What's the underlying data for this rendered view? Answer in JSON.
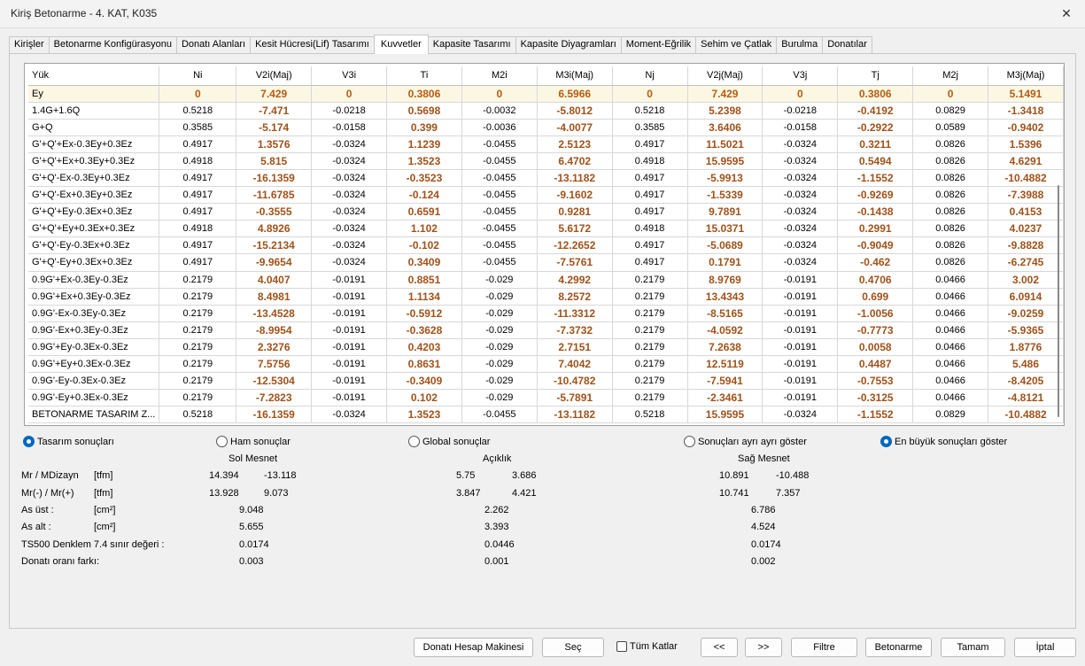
{
  "window": {
    "title": "Kiriş Betonarme - 4. KAT, K035",
    "close_glyph": "✕"
  },
  "tabs": [
    {
      "label": "Kirişler"
    },
    {
      "label": "Betonarme Konfigürasyonu"
    },
    {
      "label": "Donatı Alanları"
    },
    {
      "label": "Kesit Hücresi(Lif) Tasarımı"
    },
    {
      "label": "Kuvvetler",
      "active": true
    },
    {
      "label": "Kapasite Tasarımı"
    },
    {
      "label": "Kapasite Diyagramları"
    },
    {
      "label": "Moment-Eğrilik"
    },
    {
      "label": "Sehim ve Çatlak"
    },
    {
      "label": "Burulma"
    },
    {
      "label": "Donatılar"
    }
  ],
  "table": {
    "columns": [
      "Yük",
      "Ni",
      "V2i(Maj)",
      "V3i",
      "Ti",
      "M2i",
      "M3i(Maj)",
      "Nj",
      "V2j(Maj)",
      "V3j",
      "Tj",
      "M2j",
      "M3j(Maj)"
    ],
    "highlight_columns": [
      2,
      4,
      6,
      8,
      10,
      12
    ],
    "rows": [
      [
        "Ey",
        "0",
        "7.429",
        "0",
        "0.3806",
        "0",
        "6.5966",
        "0",
        "7.429",
        "0",
        "0.3806",
        "0",
        "5.1491"
      ],
      [
        "1.4G+1.6Q",
        "0.5218",
        "-7.471",
        "-0.0218",
        "0.5698",
        "-0.0032",
        "-5.8012",
        "0.5218",
        "5.2398",
        "-0.0218",
        "-0.4192",
        "0.0829",
        "-1.3418"
      ],
      [
        "G+Q",
        "0.3585",
        "-5.174",
        "-0.0158",
        "0.399",
        "-0.0036",
        "-4.0077",
        "0.3585",
        "3.6406",
        "-0.0158",
        "-0.2922",
        "0.0589",
        "-0.9402"
      ],
      [
        "G'+Q'+Ex-0.3Ey+0.3Ez",
        "0.4917",
        "1.3576",
        "-0.0324",
        "1.1239",
        "-0.0455",
        "2.5123",
        "0.4917",
        "11.5021",
        "-0.0324",
        "0.3211",
        "0.0826",
        "1.5396"
      ],
      [
        "G'+Q'+Ex+0.3Ey+0.3Ez",
        "0.4918",
        "5.815",
        "-0.0324",
        "1.3523",
        "-0.0455",
        "6.4702",
        "0.4918",
        "15.9595",
        "-0.0324",
        "0.5494",
        "0.0826",
        "4.6291"
      ],
      [
        "G'+Q'-Ex-0.3Ey+0.3Ez",
        "0.4917",
        "-16.1359",
        "-0.0324",
        "-0.3523",
        "-0.0455",
        "-13.1182",
        "0.4917",
        "-5.9913",
        "-0.0324",
        "-1.1552",
        "0.0826",
        "-10.4882"
      ],
      [
        "G'+Q'-Ex+0.3Ey+0.3Ez",
        "0.4917",
        "-11.6785",
        "-0.0324",
        "-0.124",
        "-0.0455",
        "-9.1602",
        "0.4917",
        "-1.5339",
        "-0.0324",
        "-0.9269",
        "0.0826",
        "-7.3988"
      ],
      [
        "G'+Q'+Ey-0.3Ex+0.3Ez",
        "0.4917",
        "-0.3555",
        "-0.0324",
        "0.6591",
        "-0.0455",
        "0.9281",
        "0.4917",
        "9.7891",
        "-0.0324",
        "-0.1438",
        "0.0826",
        "0.4153"
      ],
      [
        "G'+Q'+Ey+0.3Ex+0.3Ez",
        "0.4918",
        "4.8926",
        "-0.0324",
        "1.102",
        "-0.0455",
        "5.6172",
        "0.4918",
        "15.0371",
        "-0.0324",
        "0.2991",
        "0.0826",
        "4.0237"
      ],
      [
        "G'+Q'-Ey-0.3Ex+0.3Ez",
        "0.4917",
        "-15.2134",
        "-0.0324",
        "-0.102",
        "-0.0455",
        "-12.2652",
        "0.4917",
        "-5.0689",
        "-0.0324",
        "-0.9049",
        "0.0826",
        "-9.8828"
      ],
      [
        "G'+Q'-Ey+0.3Ex+0.3Ez",
        "0.4917",
        "-9.9654",
        "-0.0324",
        "0.3409",
        "-0.0455",
        "-7.5761",
        "0.4917",
        "0.1791",
        "-0.0324",
        "-0.462",
        "0.0826",
        "-6.2745"
      ],
      [
        "0.9G'+Ex-0.3Ey-0.3Ez",
        "0.2179",
        "4.0407",
        "-0.0191",
        "0.8851",
        "-0.029",
        "4.2992",
        "0.2179",
        "8.9769",
        "-0.0191",
        "0.4706",
        "0.0466",
        "3.002"
      ],
      [
        "0.9G'+Ex+0.3Ey-0.3Ez",
        "0.2179",
        "8.4981",
        "-0.0191",
        "1.1134",
        "-0.029",
        "8.2572",
        "0.2179",
        "13.4343",
        "-0.0191",
        "0.699",
        "0.0466",
        "6.0914"
      ],
      [
        "0.9G'-Ex-0.3Ey-0.3Ez",
        "0.2179",
        "-13.4528",
        "-0.0191",
        "-0.5912",
        "-0.029",
        "-11.3312",
        "0.2179",
        "-8.5165",
        "-0.0191",
        "-1.0056",
        "0.0466",
        "-9.0259"
      ],
      [
        "0.9G'-Ex+0.3Ey-0.3Ez",
        "0.2179",
        "-8.9954",
        "-0.0191",
        "-0.3628",
        "-0.029",
        "-7.3732",
        "0.2179",
        "-4.0592",
        "-0.0191",
        "-0.7773",
        "0.0466",
        "-5.9365"
      ],
      [
        "0.9G'+Ey-0.3Ex-0.3Ez",
        "0.2179",
        "2.3276",
        "-0.0191",
        "0.4203",
        "-0.029",
        "2.7151",
        "0.2179",
        "7.2638",
        "-0.0191",
        "0.0058",
        "0.0466",
        "1.8776"
      ],
      [
        "0.9G'+Ey+0.3Ex-0.3Ez",
        "0.2179",
        "7.5756",
        "-0.0191",
        "0.8631",
        "-0.029",
        "7.4042",
        "0.2179",
        "12.5119",
        "-0.0191",
        "0.4487",
        "0.0466",
        "5.486"
      ],
      [
        "0.9G'-Ey-0.3Ex-0.3Ez",
        "0.2179",
        "-12.5304",
        "-0.0191",
        "-0.3409",
        "-0.029",
        "-10.4782",
        "0.2179",
        "-7.5941",
        "-0.0191",
        "-0.7553",
        "0.0466",
        "-8.4205"
      ],
      [
        "0.9G'-Ey+0.3Ex-0.3Ez",
        "0.2179",
        "-7.2823",
        "-0.0191",
        "0.102",
        "-0.029",
        "-5.7891",
        "0.2179",
        "-2.3461",
        "-0.0191",
        "-0.3125",
        "0.0466",
        "-4.8121"
      ],
      [
        "BETONARME TASARIM Z...",
        "0.5218",
        "-16.1359",
        "-0.0324",
        "1.3523",
        "-0.0455",
        "-13.1182",
        "0.5218",
        "15.9595",
        "-0.0324",
        "-1.1552",
        "0.0829",
        "-10.4882"
      ]
    ]
  },
  "options": {
    "tasarim": "Tasarım sonuçları",
    "ham": "Ham sonuçlar",
    "global": "Global sonuçlar",
    "ayri": "Sonuçları ayrı ayrı göster",
    "enbuyuk": "En büyük sonuçları göster"
  },
  "results": {
    "sections": {
      "left": "Sol Mesnet",
      "mid": "Açıklık",
      "right": "Sağ Mesnet"
    },
    "rows": [
      {
        "label": "Mr / MDizayn",
        "unit": "[tfm]",
        "left": [
          "14.394",
          "-13.118"
        ],
        "mid": [
          "5.75",
          "3.686"
        ],
        "right": [
          "10.891",
          "-10.488"
        ]
      },
      {
        "label": "Mr(-) / Mr(+)",
        "unit": "[tfm]",
        "left": [
          "13.928",
          "9.073"
        ],
        "mid": [
          "3.847",
          "4.421"
        ],
        "right": [
          "10.741",
          "7.357"
        ]
      },
      {
        "label": "As üst :",
        "unit": "[cm²]",
        "left": [
          "9.048"
        ],
        "mid": [
          "2.262"
        ],
        "right": [
          "6.786"
        ]
      },
      {
        "label": "As alt :",
        "unit": "[cm²]",
        "left": [
          "5.655"
        ],
        "mid": [
          "3.393"
        ],
        "right": [
          "4.524"
        ]
      },
      {
        "label": "TS500 Denklem 7.4 sınır değeri :",
        "unit": "",
        "left": [
          "0.0174"
        ],
        "mid": [
          "0.0446"
        ],
        "right": [
          "0.0174"
        ]
      },
      {
        "label": "Donatı oranı farkı:",
        "unit": "",
        "left": [
          "0.003"
        ],
        "mid": [
          "0.001"
        ],
        "right": [
          "0.002"
        ]
      }
    ]
  },
  "buttons": {
    "hesap": "Donatı Hesap Makinesi",
    "sec": "Seç",
    "tum_katlar": "Tüm Katlar",
    "prev": "<<",
    "next": ">>",
    "filtre": "Filtre",
    "betonarme": "Betonarme",
    "tamam": "Tamam",
    "iptal": "İptal"
  }
}
